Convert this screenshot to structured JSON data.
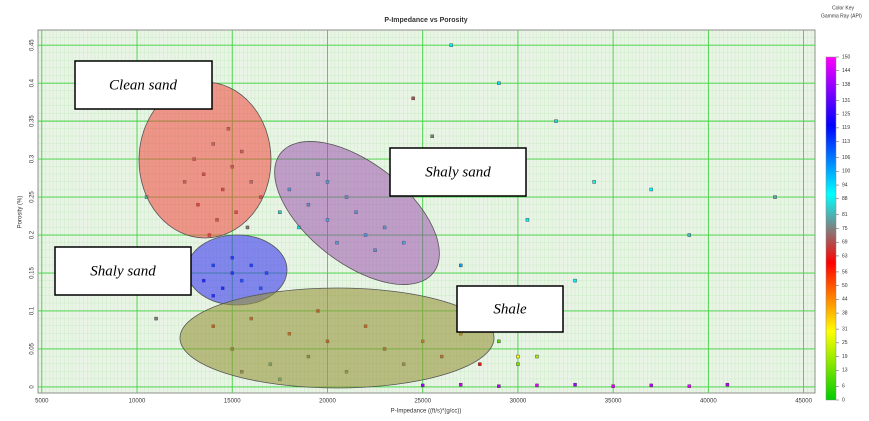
{
  "chart_data": {
    "type": "scatter",
    "title": "P-Impedance vs Porosity",
    "x_label": "P-Impedance ((ft/s)*(g/cc))",
    "y_label": "Porosity (%)",
    "xlim": [
      4800,
      45600
    ],
    "ylim": [
      -0.008,
      0.47
    ],
    "xticks": [
      5000,
      10000,
      15000,
      20000,
      25000,
      30000,
      35000,
      40000,
      45000
    ],
    "yticks": [
      0,
      0.05,
      0.1,
      0.15,
      0.2,
      0.25,
      0.3,
      0.35,
      0.4,
      0.45
    ],
    "grid": true,
    "annotations": [
      "Clean sand",
      "Shaly sand",
      "Shaly sand",
      "Shale"
    ],
    "color_key": {
      "heading": "Color Key",
      "title": "Gamma Ray (API)",
      "clim": [
        0,
        150
      ],
      "colors": [
        "#00cc00",
        "#ffff00",
        "#ff0000",
        "#00ffff",
        "#0000ff",
        "#ff00ff"
      ],
      "ticks": [
        150,
        144,
        138,
        131,
        125,
        119,
        113,
        106,
        100,
        94,
        88,
        81,
        75,
        69,
        63,
        56,
        50,
        44,
        38,
        31,
        25,
        19,
        13,
        6,
        0
      ]
    },
    "x": [
      13000,
      13500,
      14000,
      14500,
      15000,
      15500,
      13200,
      14200,
      15200,
      16000,
      12500,
      14800,
      13800,
      16500,
      15800,
      18000,
      19000,
      20000,
      21000,
      22000,
      23000,
      19500,
      20500,
      21500,
      18500,
      22500,
      24000,
      17500,
      20000,
      14000,
      15000,
      16000,
      14500,
      15500,
      13500,
      16500,
      15000,
      14000,
      16800,
      14000,
      15000,
      16000,
      17000,
      18000,
      19000,
      20000,
      21000,
      22000,
      23000,
      24000,
      25000,
      26000,
      27000,
      28000,
      17500,
      19500,
      15500,
      25000,
      27000,
      29000,
      31000,
      33000,
      35000,
      37000,
      39000,
      41000,
      30000,
      29000,
      30000,
      31000,
      26500,
      25500,
      28000,
      29000,
      32000,
      34000,
      37000,
      39000,
      43500,
      27000,
      10500,
      11000,
      33000,
      30500,
      24500
    ],
    "y": [
      0.3,
      0.28,
      0.32,
      0.26,
      0.29,
      0.31,
      0.24,
      0.22,
      0.23,
      0.27,
      0.27,
      0.34,
      0.2,
      0.25,
      0.21,
      0.26,
      0.24,
      0.22,
      0.25,
      0.2,
      0.21,
      0.28,
      0.19,
      0.23,
      0.21,
      0.18,
      0.19,
      0.23,
      0.27,
      0.16,
      0.15,
      0.16,
      0.13,
      0.14,
      0.14,
      0.13,
      0.17,
      0.12,
      0.15,
      0.08,
      0.05,
      0.09,
      0.03,
      0.07,
      0.04,
      0.06,
      0.02,
      0.08,
      0.05,
      0.03,
      0.06,
      0.04,
      0.07,
      0.03,
      0.01,
      0.1,
      0.02,
      0.002,
      0.003,
      0.001,
      0.002,
      0.003,
      0.001,
      0.002,
      0.001,
      0.003,
      0.04,
      0.06,
      0.03,
      0.04,
      0.45,
      0.33,
      0.3,
      0.4,
      0.35,
      0.27,
      0.26,
      0.2,
      0.25,
      0.16,
      0.25,
      0.09,
      0.14,
      0.22,
      0.38
    ],
    "gamma": [
      75,
      72,
      78,
      70,
      74,
      76,
      69,
      73,
      71,
      80,
      77,
      75,
      68,
      72,
      74,
      88,
      85,
      90,
      86,
      92,
      88,
      84,
      89,
      87,
      91,
      86,
      90,
      83,
      88,
      110,
      115,
      112,
      118,
      108,
      120,
      105,
      113,
      116,
      109,
      60,
      70,
      65,
      80,
      55,
      72,
      63,
      78,
      58,
      68,
      75,
      52,
      66,
      48,
      62,
      82,
      60,
      74,
      140,
      145,
      142,
      148,
      140,
      146,
      143,
      147,
      141,
      30,
      10,
      15,
      20,
      88,
      75,
      80,
      94,
      85,
      88,
      90,
      82,
      80,
      100,
      86,
      75,
      92,
      88,
      70
    ]
  }
}
